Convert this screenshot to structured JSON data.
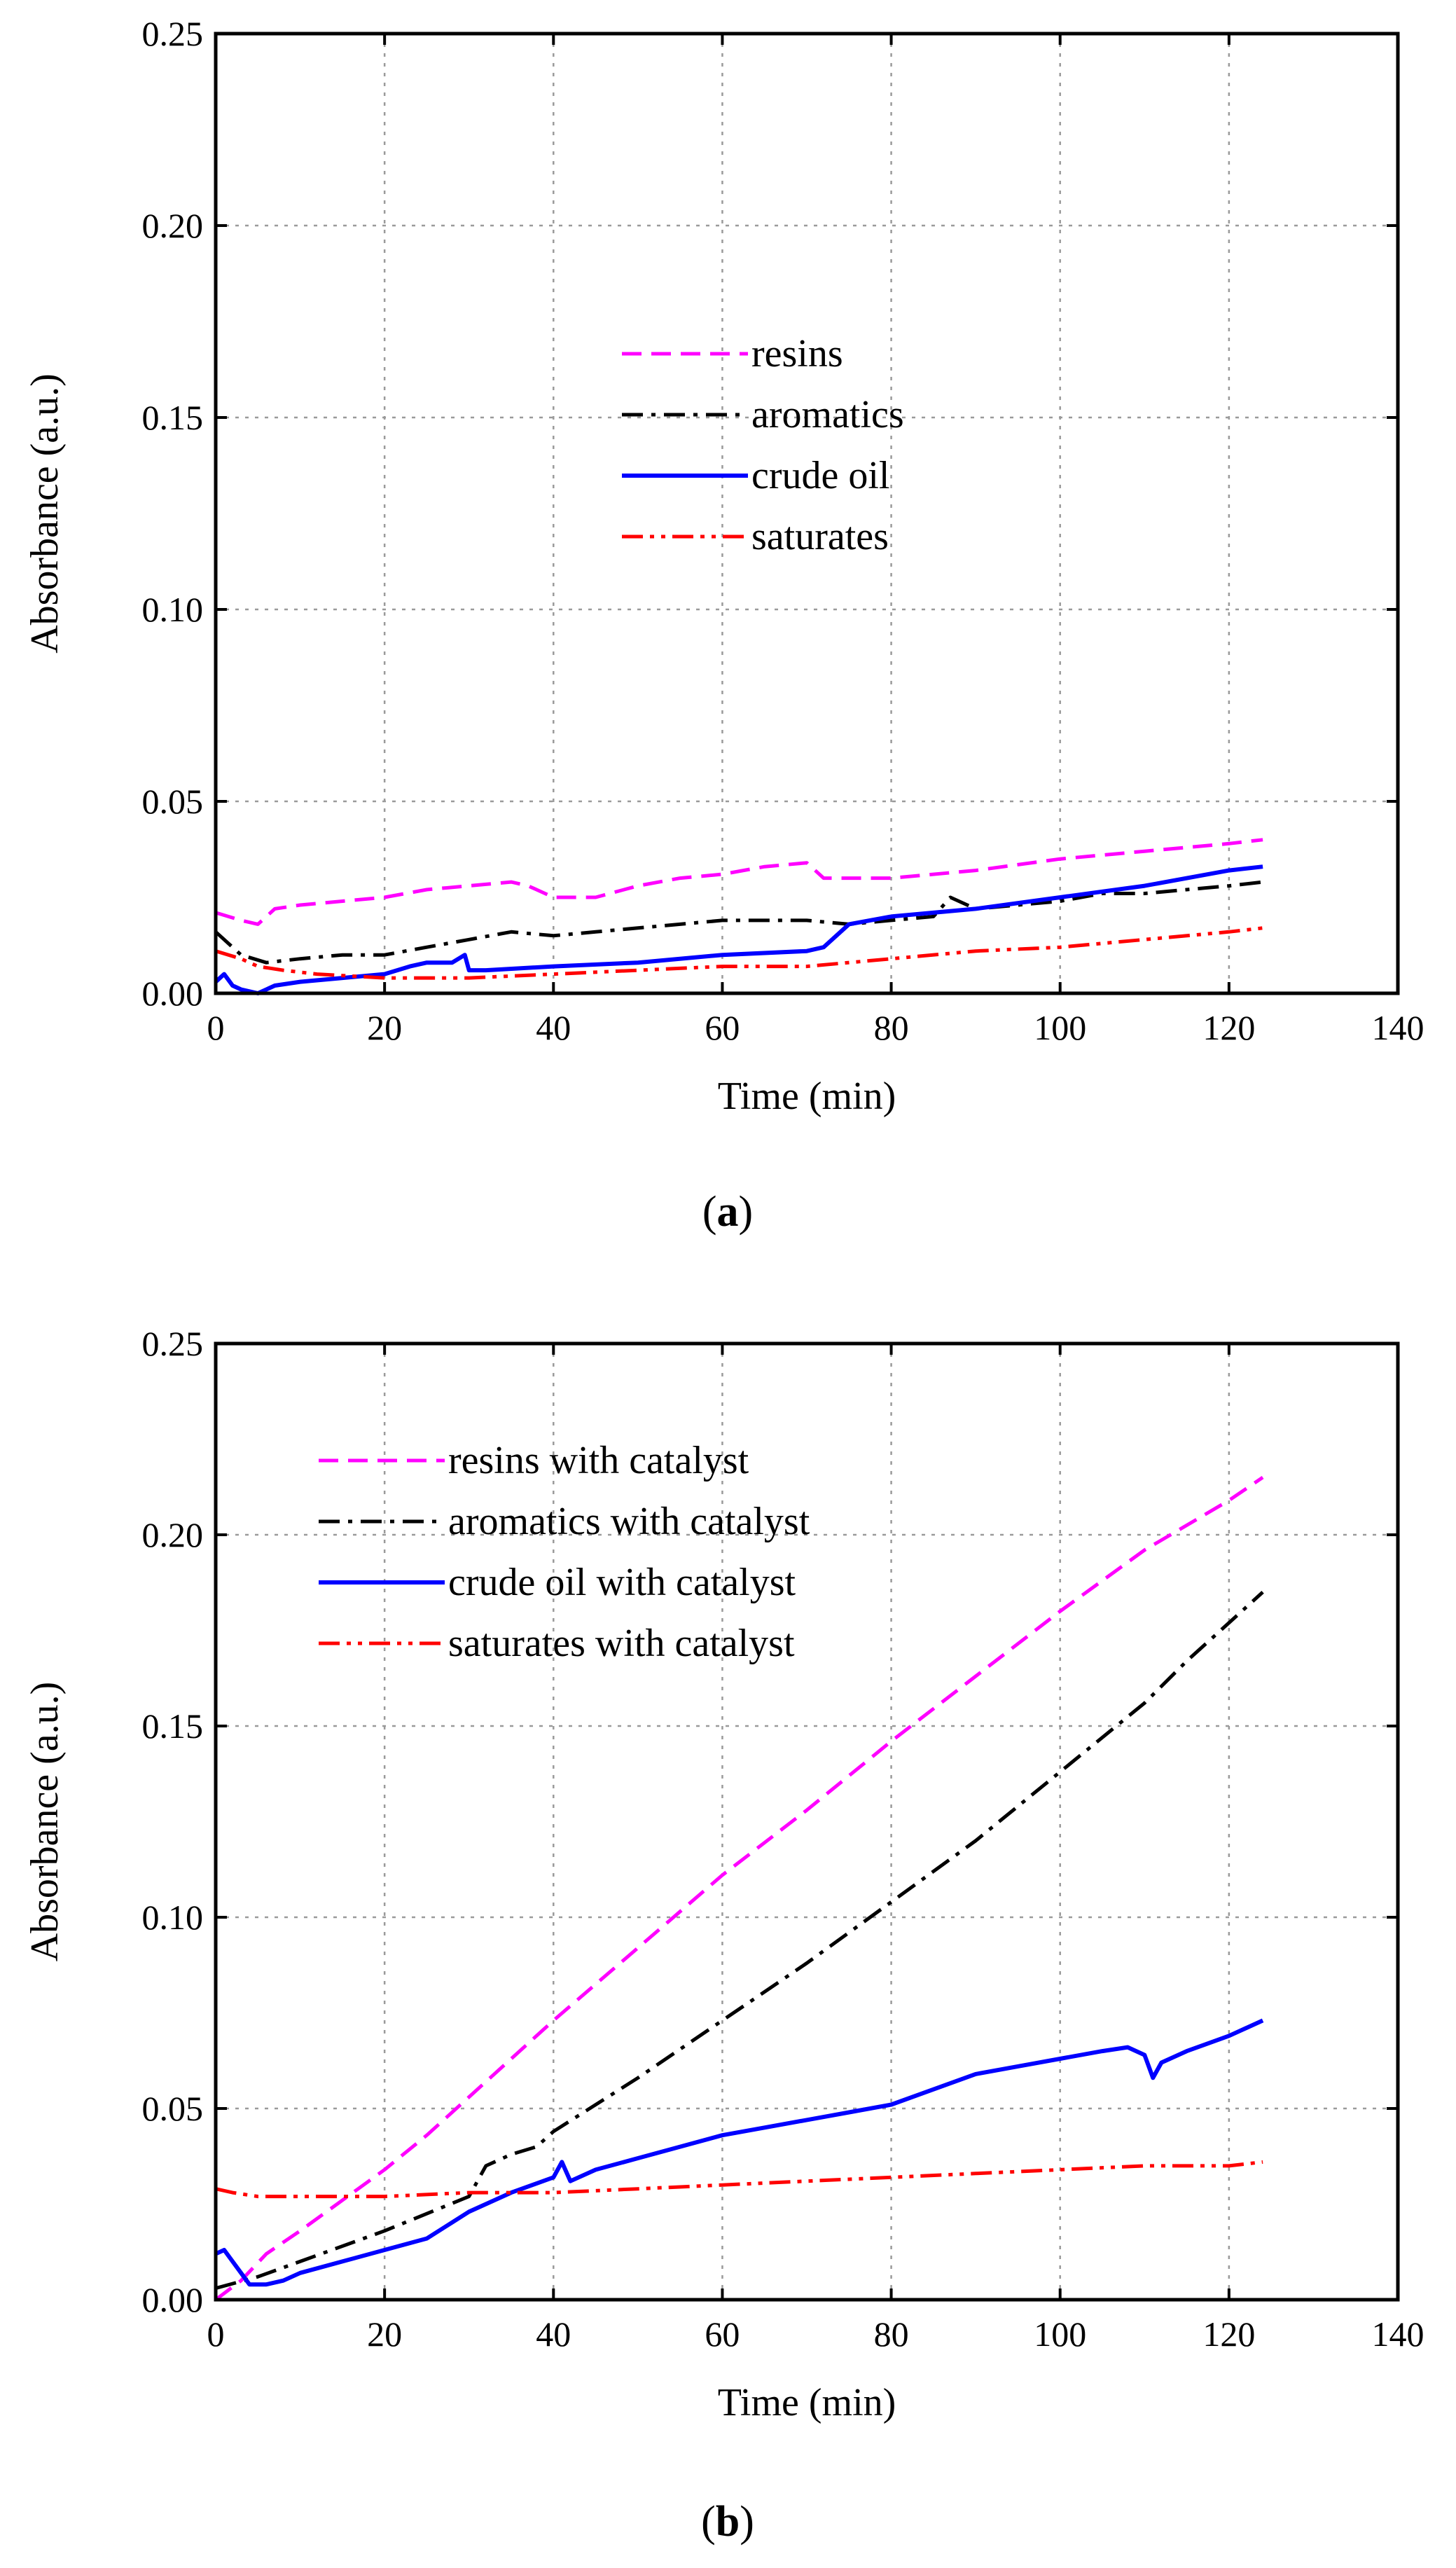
{
  "chart_data": [
    {
      "type": "line",
      "panel_label": "a",
      "title": "",
      "xlabel": "Time (min)",
      "ylabel": "Absorbance (a.u.)",
      "xlim": [
        0,
        140
      ],
      "ylim": [
        0,
        0.25
      ],
      "xticks": [
        "0",
        "20",
        "40",
        "60",
        "80",
        "100",
        "120",
        "140"
      ],
      "yticks": [
        "0.00",
        "0.05",
        "0.10",
        "0.15",
        "0.20",
        "0.25"
      ],
      "grid": true,
      "legend_position": "center",
      "series": [
        {
          "name": "resins",
          "color": "#ff00ff",
          "dash": "dashed",
          "x": [
            0,
            3,
            5,
            7,
            10,
            15,
            20,
            25,
            30,
            35,
            37,
            40,
            45,
            50,
            55,
            60,
            65,
            70,
            72,
            80,
            90,
            100,
            105,
            110,
            115,
            120,
            124
          ],
          "y": [
            0.021,
            0.019,
            0.018,
            0.022,
            0.023,
            0.024,
            0.025,
            0.027,
            0.028,
            0.029,
            0.028,
            0.025,
            0.025,
            0.028,
            0.03,
            0.031,
            0.033,
            0.034,
            0.03,
            0.03,
            0.032,
            0.035,
            0.036,
            0.037,
            0.038,
            0.039,
            0.04
          ]
        },
        {
          "name": "aromatics",
          "color": "#000000",
          "dash": "dash-dot",
          "x": [
            0,
            3,
            6,
            10,
            15,
            20,
            25,
            30,
            35,
            40,
            45,
            50,
            55,
            60,
            65,
            70,
            75,
            80,
            85,
            87,
            90,
            95,
            100,
            105,
            110,
            115,
            120,
            124
          ],
          "y": [
            0.016,
            0.01,
            0.008,
            0.009,
            0.01,
            0.01,
            0.012,
            0.014,
            0.016,
            0.015,
            0.016,
            0.017,
            0.018,
            0.019,
            0.019,
            0.019,
            0.018,
            0.019,
            0.02,
            0.025,
            0.022,
            0.023,
            0.024,
            0.026,
            0.026,
            0.027,
            0.028,
            0.029
          ]
        },
        {
          "name": "crude oil",
          "color": "#0000ff",
          "dash": "solid",
          "x": [
            0,
            1,
            2,
            3,
            5,
            7,
            10,
            15,
            20,
            23,
            25,
            28,
            29.5,
            30,
            32,
            40,
            50,
            60,
            70,
            72,
            75,
            80,
            90,
            100,
            110,
            120,
            124
          ],
          "y": [
            0.003,
            0.005,
            0.002,
            0.001,
            0.0,
            0.002,
            0.003,
            0.004,
            0.005,
            0.007,
            0.008,
            0.008,
            0.01,
            0.006,
            0.006,
            0.007,
            0.008,
            0.01,
            0.011,
            0.012,
            0.018,
            0.02,
            0.022,
            0.025,
            0.028,
            0.032,
            0.033
          ]
        },
        {
          "name": "saturates",
          "color": "#ff0000",
          "dash": "dash-dot-dot",
          "x": [
            0,
            3,
            5,
            8,
            12,
            20,
            30,
            40,
            50,
            60,
            70,
            80,
            90,
            100,
            110,
            120,
            124
          ],
          "y": [
            0.011,
            0.009,
            0.007,
            0.006,
            0.005,
            0.004,
            0.004,
            0.005,
            0.006,
            0.007,
            0.007,
            0.009,
            0.011,
            0.012,
            0.014,
            0.016,
            0.017
          ]
        }
      ]
    },
    {
      "type": "line",
      "panel_label": "b",
      "title": "",
      "xlabel": "Time (min)",
      "ylabel": "Absorbance (a.u.)",
      "xlim": [
        0,
        140
      ],
      "ylim": [
        0,
        0.25
      ],
      "xticks": [
        "0",
        "20",
        "40",
        "60",
        "80",
        "100",
        "120",
        "140"
      ],
      "yticks": [
        "0.00",
        "0.05",
        "0.10",
        "0.15",
        "0.20",
        "0.25"
      ],
      "grid": true,
      "legend_position": "top-left",
      "series": [
        {
          "name": "resins with catalyst",
          "color": "#ff00ff",
          "dash": "dashed",
          "x": [
            0,
            3,
            6,
            10,
            15,
            20,
            25,
            30,
            35,
            40,
            50,
            60,
            70,
            80,
            90,
            100,
            110,
            120,
            124
          ],
          "y": [
            0.0,
            0.005,
            0.012,
            0.018,
            0.026,
            0.034,
            0.043,
            0.053,
            0.063,
            0.073,
            0.092,
            0.111,
            0.128,
            0.146,
            0.163,
            0.18,
            0.196,
            0.209,
            0.215
          ]
        },
        {
          "name": "aromatics with catalyst",
          "color": "#000000",
          "dash": "dash-dot",
          "x": [
            0,
            5,
            10,
            20,
            30,
            32,
            35,
            38,
            40,
            50,
            60,
            70,
            80,
            90,
            100,
            110,
            115,
            120,
            124
          ],
          "y": [
            0.003,
            0.006,
            0.01,
            0.018,
            0.027,
            0.035,
            0.038,
            0.04,
            0.044,
            0.058,
            0.073,
            0.088,
            0.104,
            0.12,
            0.138,
            0.156,
            0.167,
            0.177,
            0.185
          ]
        },
        {
          "name": "crude oil with catalyst",
          "color": "#0000ff",
          "dash": "solid",
          "x": [
            0,
            1,
            2,
            4,
            6,
            8,
            10,
            15,
            20,
            25,
            30,
            35,
            40,
            41,
            42,
            45,
            50,
            55,
            60,
            65,
            70,
            75,
            80,
            85,
            90,
            95,
            100,
            105,
            108,
            110,
            111,
            112,
            115,
            120,
            124
          ],
          "y": [
            0.012,
            0.013,
            0.01,
            0.004,
            0.004,
            0.005,
            0.007,
            0.01,
            0.013,
            0.016,
            0.023,
            0.028,
            0.032,
            0.036,
            0.031,
            0.034,
            0.037,
            0.04,
            0.043,
            0.045,
            0.047,
            0.049,
            0.051,
            0.055,
            0.059,
            0.061,
            0.063,
            0.065,
            0.066,
            0.064,
            0.058,
            0.062,
            0.065,
            0.069,
            0.073
          ]
        },
        {
          "name": "saturates with catalyst",
          "color": "#ff0000",
          "dash": "dash-dot-dot",
          "x": [
            0,
            2,
            5,
            10,
            20,
            30,
            40,
            50,
            60,
            70,
            80,
            90,
            100,
            110,
            120,
            124
          ],
          "y": [
            0.029,
            0.028,
            0.027,
            0.027,
            0.027,
            0.028,
            0.028,
            0.029,
            0.03,
            0.031,
            0.032,
            0.033,
            0.034,
            0.035,
            0.035,
            0.036
          ]
        }
      ]
    }
  ]
}
